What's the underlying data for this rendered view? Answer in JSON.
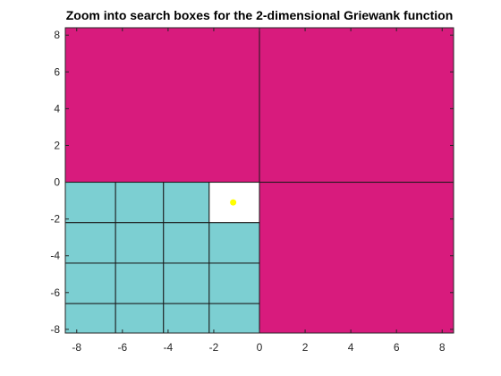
{
  "chart_data": {
    "type": "heatmap",
    "title": "Zoom into search boxes for the 2-dimensional Griewank function",
    "xlabel": "",
    "ylabel": "",
    "xlim": [
      -8.5,
      8.5
    ],
    "ylim": [
      -8.2,
      8.4
    ],
    "x_ticks": [
      -8,
      -6,
      -4,
      -2,
      0,
      2,
      4,
      6,
      8
    ],
    "y_ticks": [
      -8,
      -6,
      -4,
      -2,
      0,
      2,
      4,
      6,
      8
    ],
    "grid": false,
    "colors": {
      "magenta": "#d81b7d",
      "teal": "#7ccfd2",
      "white": "#ffffff",
      "point": "#ffff00"
    },
    "boxes": [
      {
        "x0": -8.5,
        "x1": 0,
        "y0": 0,
        "y1": 8.4,
        "color": "magenta"
      },
      {
        "x0": 0,
        "x1": 8.5,
        "y0": 0,
        "y1": 8.4,
        "color": "magenta"
      },
      {
        "x0": 0,
        "x1": 8.5,
        "y0": -8.2,
        "y1": 0,
        "color": "magenta"
      },
      {
        "x0": -8.5,
        "x1": -6.3,
        "y0": -2.2,
        "y1": 0,
        "color": "teal"
      },
      {
        "x0": -6.3,
        "x1": -4.2,
        "y0": -2.2,
        "y1": 0,
        "color": "teal"
      },
      {
        "x0": -4.2,
        "x1": -2.2,
        "y0": -2.2,
        "y1": 0,
        "color": "teal"
      },
      {
        "x0": -2.2,
        "x1": 0,
        "y0": -2.2,
        "y1": 0,
        "color": "white"
      },
      {
        "x0": -8.5,
        "x1": -6.3,
        "y0": -4.4,
        "y1": -2.2,
        "color": "teal"
      },
      {
        "x0": -6.3,
        "x1": -4.2,
        "y0": -4.4,
        "y1": -2.2,
        "color": "teal"
      },
      {
        "x0": -4.2,
        "x1": -2.2,
        "y0": -4.4,
        "y1": -2.2,
        "color": "teal"
      },
      {
        "x0": -2.2,
        "x1": 0,
        "y0": -4.4,
        "y1": -2.2,
        "color": "teal"
      },
      {
        "x0": -8.5,
        "x1": -6.3,
        "y0": -6.6,
        "y1": -4.4,
        "color": "teal"
      },
      {
        "x0": -6.3,
        "x1": -4.2,
        "y0": -6.6,
        "y1": -4.4,
        "color": "teal"
      },
      {
        "x0": -4.2,
        "x1": -2.2,
        "y0": -6.6,
        "y1": -4.4,
        "color": "teal"
      },
      {
        "x0": -2.2,
        "x1": 0,
        "y0": -6.6,
        "y1": -4.4,
        "color": "teal"
      },
      {
        "x0": -8.5,
        "x1": -6.3,
        "y0": -8.2,
        "y1": -6.6,
        "color": "teal"
      },
      {
        "x0": -6.3,
        "x1": -4.2,
        "y0": -8.2,
        "y1": -6.6,
        "color": "teal"
      },
      {
        "x0": -4.2,
        "x1": -2.2,
        "y0": -8.2,
        "y1": -6.6,
        "color": "teal"
      },
      {
        "x0": -2.2,
        "x1": 0,
        "y0": -8.2,
        "y1": -6.6,
        "color": "teal"
      }
    ],
    "points": [
      {
        "x": -1.15,
        "y": -1.1,
        "color": "point"
      }
    ]
  }
}
